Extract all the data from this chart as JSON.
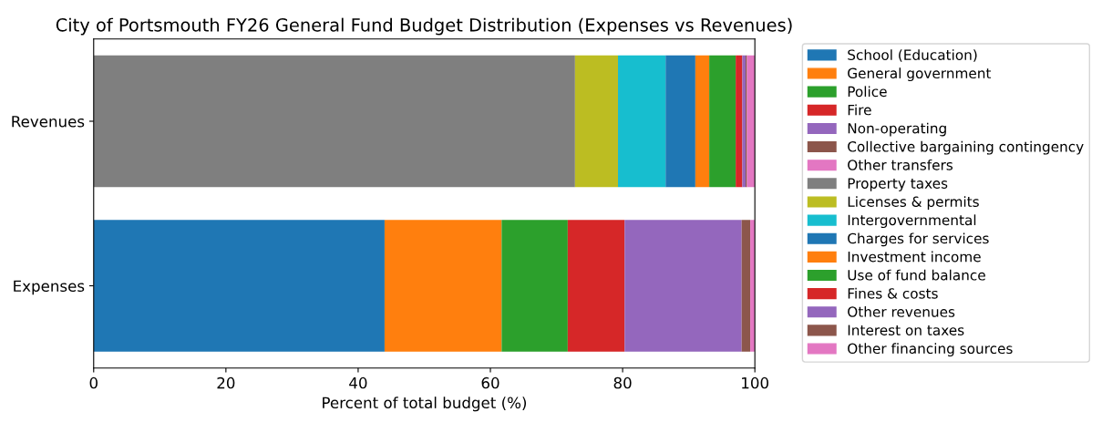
{
  "chart_data": {
    "type": "bar",
    "orientation": "horizontal",
    "stacked": true,
    "title": "City of Portsmouth FY26 General Fund Budget Distribution (Expenses vs Revenues)",
    "xlabel": "Percent of total budget (%)",
    "categories": [
      "Revenues",
      "Expenses"
    ],
    "xlim": [
      0,
      100
    ],
    "xticks": [
      0,
      20,
      40,
      60,
      80,
      100
    ],
    "grid": false,
    "legend": "right",
    "series": [
      {
        "name": "School (Education)",
        "color": "#1f77b4",
        "values": [
          null,
          44.0
        ]
      },
      {
        "name": "General government",
        "color": "#ff7f0e",
        "values": [
          null,
          17.7
        ]
      },
      {
        "name": "Police",
        "color": "#2ca02c",
        "values": [
          null,
          10.0
        ]
      },
      {
        "name": "Fire",
        "color": "#d62728",
        "values": [
          null,
          8.6
        ]
      },
      {
        "name": "Non-operating",
        "color": "#9467bd",
        "values": [
          null,
          17.7
        ]
      },
      {
        "name": "Collective bargaining contingency",
        "color": "#8c564b",
        "values": [
          null,
          1.3
        ]
      },
      {
        "name": "Other transfers",
        "color": "#e377c2",
        "values": [
          null,
          0.7
        ]
      },
      {
        "name": "Property taxes",
        "color": "#7f7f7f",
        "values": [
          72.8,
          null
        ]
      },
      {
        "name": "Licenses & permits",
        "color": "#bcbd22",
        "values": [
          6.5,
          null
        ]
      },
      {
        "name": "Intergovernmental",
        "color": "#17becf",
        "values": [
          7.2,
          null
        ]
      },
      {
        "name": "Charges for services",
        "color": "#1f77b4",
        "values": [
          4.5,
          null
        ]
      },
      {
        "name": "Investment income",
        "color": "#ff7f0e",
        "values": [
          2.1,
          null
        ]
      },
      {
        "name": "Use of fund balance",
        "color": "#2ca02c",
        "values": [
          4.0,
          null
        ]
      },
      {
        "name": "Fines & costs",
        "color": "#d62728",
        "values": [
          1.0,
          null
        ]
      },
      {
        "name": "Other revenues",
        "color": "#9467bd",
        "values": [
          0.5,
          null
        ]
      },
      {
        "name": "Interest on taxes",
        "color": "#8c564b",
        "values": [
          0.2,
          null
        ]
      },
      {
        "name": "Other financing sources",
        "color": "#e377c2",
        "values": [
          1.2,
          null
        ]
      }
    ]
  }
}
